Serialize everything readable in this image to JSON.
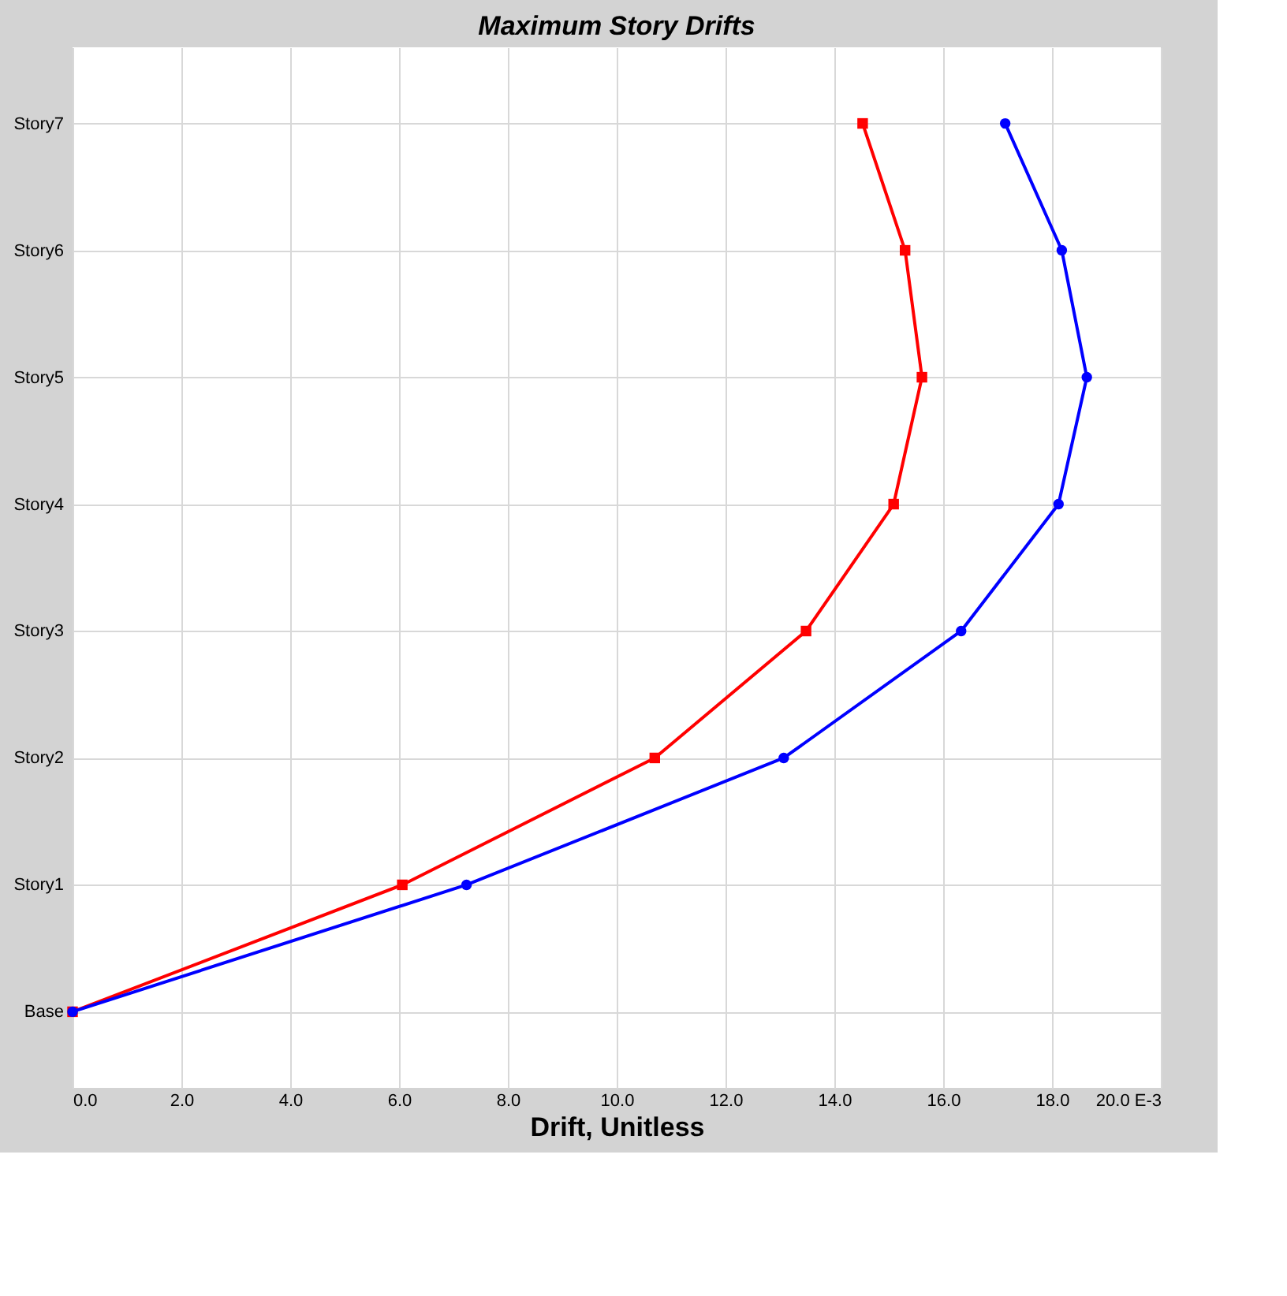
{
  "chart_data": {
    "type": "line",
    "orientation": "horizontal",
    "title": "Maximum Story Drifts",
    "xlabel": "Drift, Unitless",
    "categories": [
      "Story7",
      "Story6",
      "Story5",
      "Story4",
      "Story3",
      "Story2",
      "Story1",
      "Base"
    ],
    "xlim": [
      0,
      20
    ],
    "xticks": [
      {
        "value": 0,
        "label": "0.0"
      },
      {
        "value": 2,
        "label": "2.0"
      },
      {
        "value": 4,
        "label": "4.0"
      },
      {
        "value": 6,
        "label": "6.0"
      },
      {
        "value": 8,
        "label": "8.0"
      },
      {
        "value": 10,
        "label": "10.0"
      },
      {
        "value": 12,
        "label": "12.0"
      },
      {
        "value": 14,
        "label": "14.0"
      },
      {
        "value": 16,
        "label": "16.0"
      },
      {
        "value": 18,
        "label": "18.0"
      },
      {
        "value": 20,
        "label": "20.0 E-3"
      }
    ],
    "grid": true,
    "line_style": "solid",
    "series": [
      {
        "color": "#ff0000",
        "marker": "square",
        "values": [
          14.52,
          15.3,
          15.61,
          15.09,
          13.48,
          10.7,
          6.06,
          0
        ]
      },
      {
        "color": "#0000ff",
        "marker": "circle",
        "values": [
          17.14,
          18.18,
          18.64,
          18.12,
          16.33,
          13.07,
          7.24,
          0
        ]
      }
    ]
  }
}
